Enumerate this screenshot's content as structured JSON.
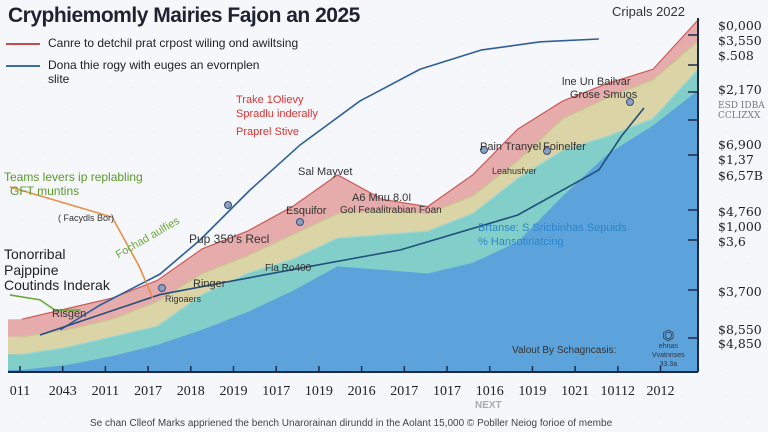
{
  "title": "Cryphiemomly Mairies Fajon an 2025",
  "header_right": "Cripals 2022",
  "legend": [
    {
      "label": "Canre to detchil prat crpost wiling ond awiltsing",
      "color": "#c94a4a"
    },
    {
      "label": "Dona thie rogy with euges an evornplen slite",
      "color": "#3a6ea5"
    }
  ],
  "chart_data": {
    "type": "area",
    "stacked": true,
    "categories": [
      "011",
      "2043",
      "2011",
      "2017",
      "2018",
      "2019",
      "1017",
      "1019",
      "2016",
      "2017",
      "1017",
      "1016",
      "1019",
      "1021",
      "10112",
      "2012"
    ],
    "series": [
      {
        "color": "#5aa0dc",
        "values": [
          0.6,
          2,
          4.5,
          7.7,
          12,
          17,
          23,
          30,
          29,
          28,
          31,
          37,
          50,
          62,
          70,
          80
        ]
      },
      {
        "color": "#7dcfca",
        "values": [
          5,
          7,
          10,
          13,
          22,
          28,
          32,
          38,
          39,
          40,
          45,
          55,
          63,
          67,
          72,
          86
        ]
      },
      {
        "color": "#d9d6a6",
        "values": [
          10,
          12,
          15,
          20,
          28,
          33,
          39,
          45,
          46,
          45,
          50,
          60,
          72,
          78,
          83,
          94
        ]
      },
      {
        "color": "#e5a6a6",
        "values": [
          15,
          18,
          21,
          26,
          35,
          40,
          47,
          56,
          49,
          47,
          56,
          69,
          77,
          82,
          86,
          100
        ]
      }
    ],
    "lines": [
      {
        "color": "#2f5f9a",
        "points": [
          [
            0.85,
            12
          ],
          [
            1.73,
            19
          ],
          [
            3.06,
            27.8
          ],
          [
            3.95,
            37.5
          ],
          [
            5.06,
            51.7
          ],
          [
            6.17,
            64.5
          ],
          [
            7.5,
            77
          ],
          [
            8.83,
            86
          ],
          [
            10.2,
            91.5
          ],
          [
            11.5,
            93.8
          ],
          [
            12.8,
            94.6
          ]
        ]
      },
      {
        "color": "#234f7d",
        "points": [
          [
            0.4,
            10.5
          ],
          [
            3.06,
            22
          ],
          [
            6.17,
            29.5
          ],
          [
            8.4,
            34.7
          ],
          [
            11,
            44.6
          ],
          [
            12.8,
            57.4
          ],
          [
            13.3,
            67
          ],
          [
            13.8,
            75
          ]
        ]
      },
      {
        "color": "#e8904a",
        "points": [
          [
            -0.27,
            52.6
          ],
          [
            1.1,
            47.4
          ],
          [
            2,
            44
          ],
          [
            2.6,
            30
          ],
          [
            2.9,
            21
          ]
        ]
      },
      {
        "color": "#6aaa3a",
        "points": [
          [
            -0.27,
            21.9
          ],
          [
            0.4,
            20.5
          ],
          [
            0.73,
            17.6
          ],
          [
            1.3,
            17.6
          ]
        ]
      }
    ],
    "y_tick_labels": [
      "$0,000",
      "$3,550",
      "$.508",
      "$2,170",
      "ESD IDBA",
      "CCLIZXX",
      "$6,900",
      "$1,37",
      "$6,57B",
      "$4,760",
      "$1,000",
      "$3,6",
      "$3,700",
      "$8,550",
      "$4,850"
    ],
    "x_note": "NEXT",
    "grid": false
  },
  "annotations": [
    "Trake 1Olievy",
    "Spradlu inderally",
    "Praprel Stive",
    "Teams levers ip replabling",
    "GFT muntins",
    "( Facydls Bor)",
    "Fochad aulfies",
    "Pup 350's Recl",
    "Tonorribal",
    "Pajppine",
    "Coutinds Inderak",
    "Sal Mayvet",
    "A6 Mnu 8.0I",
    "Esquifor",
    "Gol Feaalitrabian Foan",
    "Fla Ro400",
    "Ringer",
    "Rigoaers",
    "Risgen",
    "Pain Tranyel",
    "Foinelfer",
    "Leahusfver",
    "lne Un Bailvar",
    "Grose Smuos",
    "Brtanse: S Sricbinhas Sepuids",
    "% Hansotinatcing",
    "Valout By Schagncasis:"
  ],
  "watermark": {
    "line1": "ehnas",
    "line2": "Vvatnnses",
    "line3": "33.3a"
  },
  "source": "Se chan Clleof Marks appriened the bench Unarorainan dirundd in the Aolant 15,000 © Pobller Neiog forioe of membe"
}
